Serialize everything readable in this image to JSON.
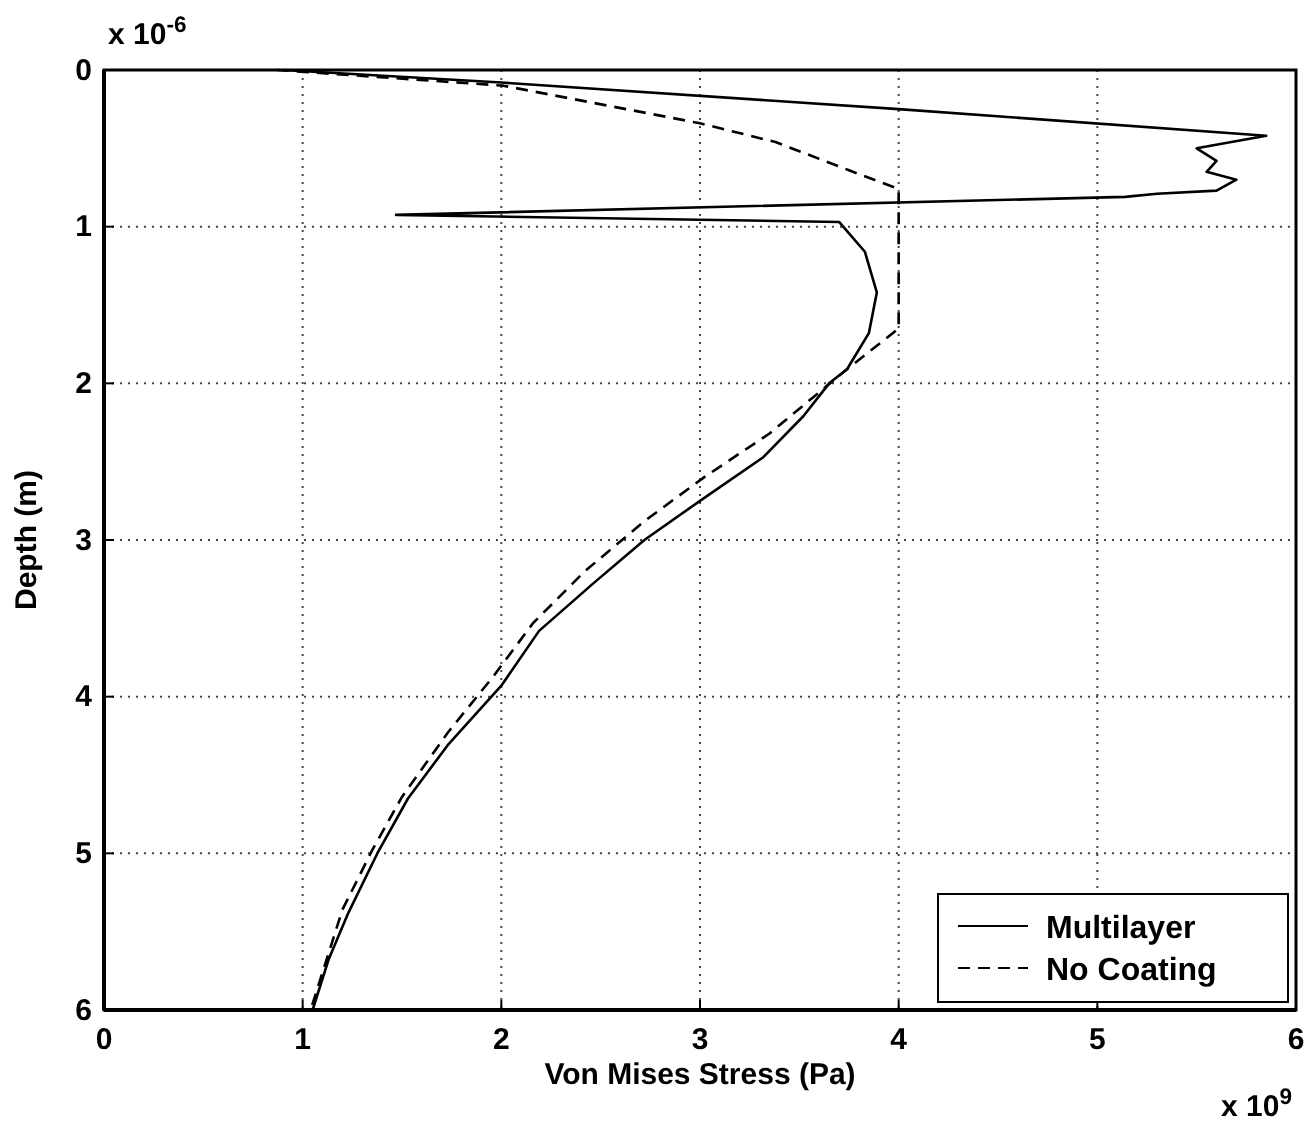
{
  "chart_data": {
    "type": "line",
    "xlabel": "Von Mises Stress (Pa)",
    "ylabel": "Depth (m)",
    "xlim": [
      0,
      6
    ],
    "xticks": [
      0,
      1,
      2,
      3,
      4,
      5,
      6
    ],
    "ylim": [
      6,
      0
    ],
    "yticks": [
      0,
      1,
      2,
      3,
      4,
      5,
      6
    ],
    "grid": true,
    "legend": "bottom right",
    "annotations": [
      "x 10$^{9}$",
      "x 10$^{-6}$"
    ],
    "series": [
      {
        "name": "Multilayer",
        "color": "#000000",
        "line_style": "solid",
        "x": [
          0.9,
          2.0,
          4.0,
          5.85,
          5.5,
          5.6,
          5.55,
          5.7,
          5.6,
          5.3,
          5.14,
          1.47,
          3.7,
          3.83,
          3.89,
          3.85,
          3.74,
          3.65,
          3.52,
          3.32,
          3.0,
          2.72,
          2.46,
          2.19,
          2.0,
          1.73,
          1.53,
          1.38,
          1.23,
          1.13,
          1.05
        ],
        "values": [
          0,
          0.08,
          0.25,
          0.42,
          0.5,
          0.58,
          0.65,
          0.7,
          0.77,
          0.79,
          0.81,
          0.925,
          0.97,
          1.16,
          1.42,
          1.68,
          1.91,
          2.0,
          2.21,
          2.47,
          2.75,
          3.0,
          3.28,
          3.58,
          3.93,
          4.31,
          4.65,
          4.99,
          5.38,
          5.68,
          6.0
        ]
      },
      {
        "name": "No Coating",
        "color": "#000000",
        "line_style": "dashed",
        "x": [
          0.87,
          2.01,
          3.0,
          3.38,
          3.75,
          4.0,
          4.0,
          3.74,
          3.35,
          3.02,
          2.72,
          2.42,
          2.16,
          1.96,
          1.73,
          1.5,
          1.35,
          1.2,
          1.04
        ],
        "values": [
          0,
          0.1,
          0.34,
          0.46,
          0.64,
          0.76,
          1.65,
          1.91,
          2.32,
          2.6,
          2.88,
          3.2,
          3.53,
          3.87,
          4.23,
          4.64,
          4.98,
          5.36,
          6.0
        ]
      }
    ]
  }
}
